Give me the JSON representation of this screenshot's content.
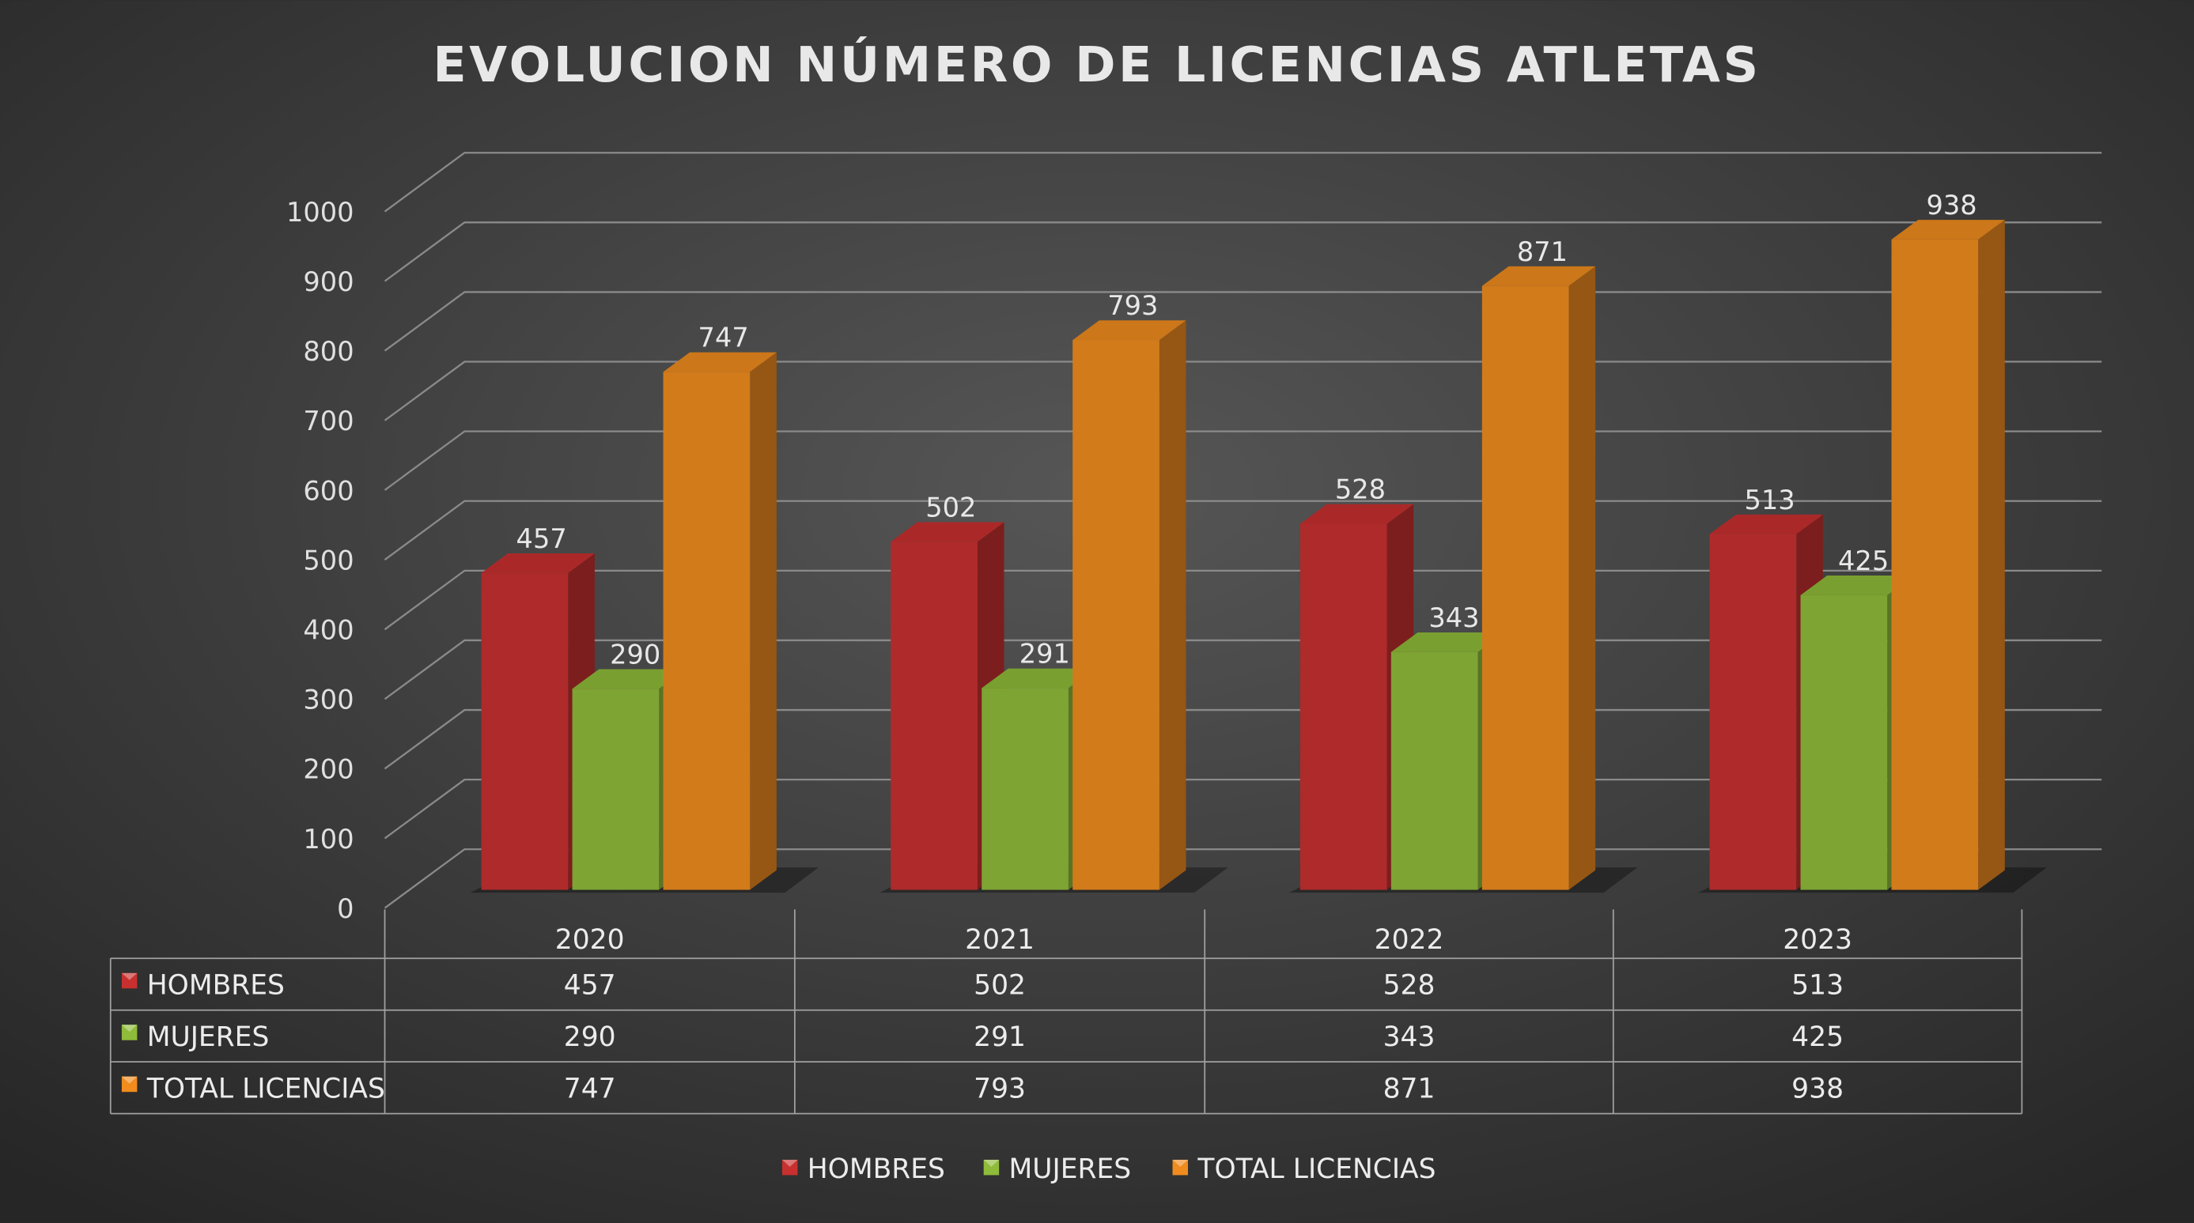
{
  "chart_data": {
    "type": "bar",
    "subtype": "3d-clustered-column-with-data-table",
    "title": "EVOLUCION NÚMERO DE LICENCIAS ATLETAS",
    "categories": [
      "2020",
      "2021",
      "2022",
      "2023"
    ],
    "series": [
      {
        "name": "HOMBRES",
        "values": [
          457,
          502,
          528,
          513
        ],
        "color": "#c8302f"
      },
      {
        "name": "MUJERES",
        "values": [
          290,
          291,
          343,
          425
        ],
        "color": "#8fbb3a"
      },
      {
        "name": "TOTAL LICENCIAS",
        "values": [
          747,
          793,
          871,
          938
        ],
        "color": "#f08c1e"
      }
    ],
    "ylim": [
      0,
      1000
    ],
    "yticks": [
      "0",
      "100",
      "200",
      "300",
      "400",
      "500",
      "600",
      "700",
      "800",
      "900",
      "1000"
    ],
    "grid": true,
    "data_labels": true,
    "data_table": true,
    "legend": "bottom",
    "background": "#3a3a3a"
  }
}
